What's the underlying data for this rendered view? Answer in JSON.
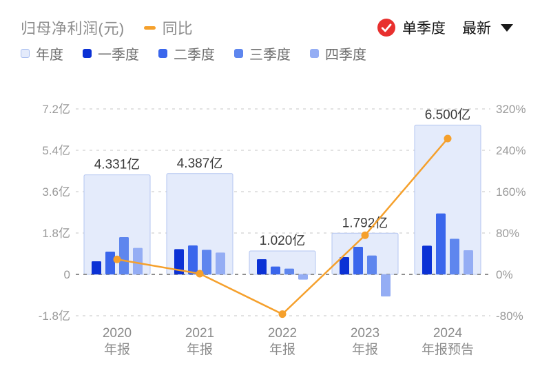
{
  "header": {
    "title": "归母净利润(元)",
    "yoy_legend_label": "同比",
    "mode_label": "单季度",
    "latest_label": "最新",
    "colors": {
      "line_orange": "#F5A02C",
      "check_red": "#E8302E"
    }
  },
  "legend": {
    "items": [
      {
        "label": "年度",
        "swatch": "#E4EBFB",
        "swatch_border": "#A9BEF0"
      },
      {
        "label": "一季度",
        "swatch": "#0B31D5",
        "swatch_border": "#0B31D5"
      },
      {
        "label": "二季度",
        "swatch": "#3A66EC",
        "swatch_border": "#3A66EC"
      },
      {
        "label": "三季度",
        "swatch": "#5E86EE",
        "swatch_border": "#5E86EE"
      },
      {
        "label": "四季度",
        "swatch": "#94ADF4",
        "swatch_border": "#94ADF4"
      }
    ]
  },
  "chart_data": {
    "type": "bar+line combo (grouped quarterly bars, annual background bars, YoY line on right axis)",
    "title": "归母净利润(元)",
    "categories": [
      "2020 年报",
      "2021 年报",
      "2022 年报",
      "2023 年报",
      "2024 年报预告"
    ],
    "category_lines": [
      [
        "2020",
        "年报"
      ],
      [
        "2021",
        "年报"
      ],
      [
        "2022",
        "年报"
      ],
      [
        "2023",
        "年报"
      ],
      [
        "2024",
        "年报预告"
      ]
    ],
    "years": [
      "2020",
      "2021",
      "2022",
      "2023",
      "2024"
    ],
    "annual": {
      "name": "年度",
      "values_yi": [
        4.331,
        4.387,
        1.02,
        1.792,
        6.5
      ],
      "labels": [
        "4.331亿",
        "4.387亿",
        "1.020亿",
        "1.792亿",
        "6.500亿"
      ],
      "fill": "#E4EBFB",
      "border": "#B3C5F0"
    },
    "quarter_series": [
      {
        "name": "一季度",
        "color": "#0B31D5",
        "values_yi": [
          0.57,
          1.1,
          0.66,
          0.75,
          1.25
        ]
      },
      {
        "name": "二季度",
        "color": "#3A66EC",
        "values_yi": [
          0.99,
          1.26,
          0.34,
          1.2,
          2.65
        ]
      },
      {
        "name": "三季度",
        "color": "#5E86EE",
        "values_yi": [
          1.62,
          1.07,
          0.25,
          0.82,
          1.55
        ]
      },
      {
        "name": "四季度",
        "color": "#94ADF4",
        "values_yi": [
          1.15,
          0.95,
          -0.23,
          -0.96,
          1.05
        ]
      }
    ],
    "yoy_line": {
      "name": "同比",
      "color": "#F5A02C",
      "values_pct": [
        29,
        1.3,
        -76.8,
        75.7,
        262.7
      ]
    },
    "left_axis": {
      "tick_labels": [
        "7.2亿",
        "5.4亿",
        "3.6亿",
        "1.8亿",
        "0",
        "-1.8亿"
      ],
      "tick_values_yi": [
        7.2,
        5.4,
        3.6,
        1.8,
        0,
        -1.8
      ],
      "range_yi": [
        -1.8,
        7.2
      ]
    },
    "right_axis": {
      "tick_labels": [
        "320%",
        "240%",
        "160%",
        "80%",
        "0%",
        "-80%"
      ],
      "tick_values_pct": [
        320,
        240,
        160,
        80,
        0,
        -80
      ],
      "range_pct": [
        -80,
        320
      ]
    },
    "grid": {
      "style": "dashed horizontal",
      "color": "#D9D9D9",
      "zero_line_color": "#8E8E8E"
    },
    "text_colors": {
      "axis": "#999999",
      "bar_label": "#3A3A3A",
      "x_label": "#8A8A8A"
    }
  }
}
